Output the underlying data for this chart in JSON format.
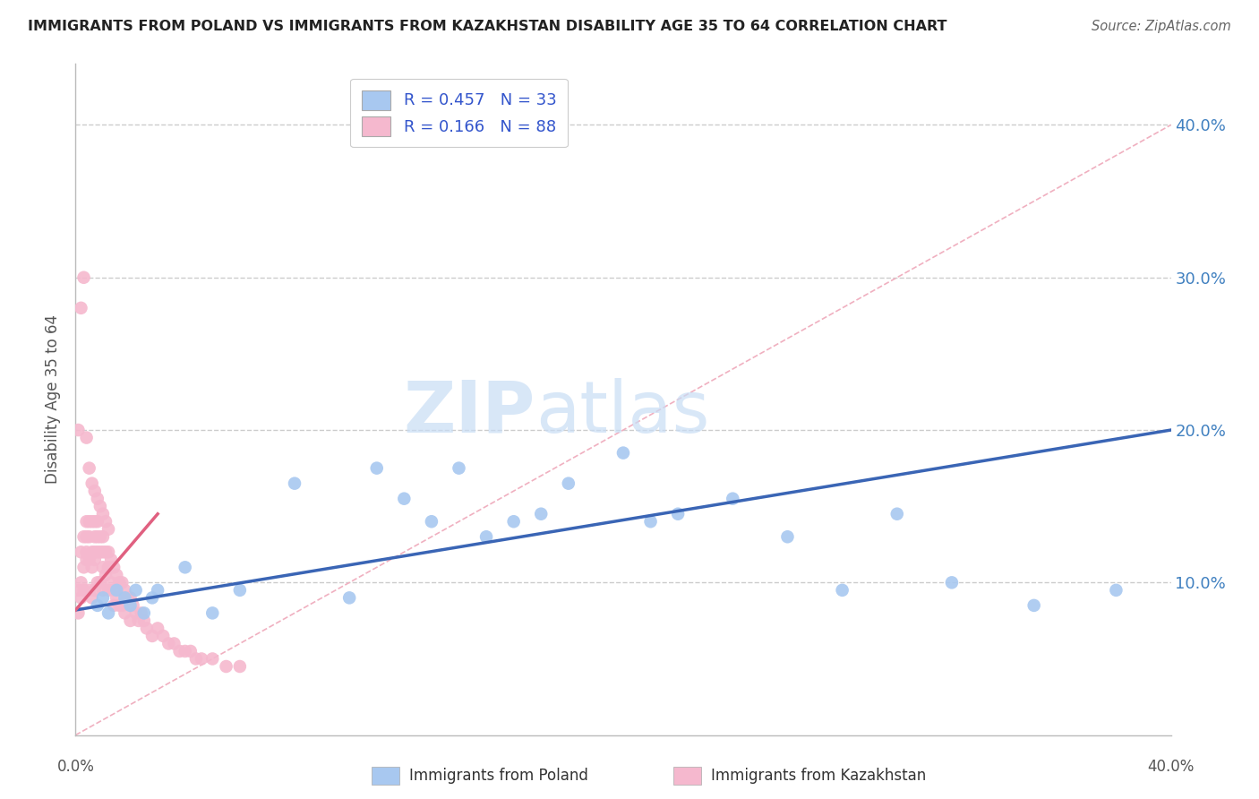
{
  "title": "IMMIGRANTS FROM POLAND VS IMMIGRANTS FROM KAZAKHSTAN DISABILITY AGE 35 TO 64 CORRELATION CHART",
  "source": "Source: ZipAtlas.com",
  "ylabel": "Disability Age 35 to 64",
  "y_tick_vals": [
    0.1,
    0.2,
    0.3,
    0.4
  ],
  "xlim": [
    0.0,
    0.4
  ],
  "ylim": [
    0.0,
    0.44
  ],
  "legend_label_poland": "Immigrants from Poland",
  "legend_label_kazakhstan": "Immigrants from Kazakhstan",
  "color_poland": "#a8c8f0",
  "color_kazakhstan": "#f5b8ce",
  "color_poland_line": "#3a65b5",
  "color_kazakhstan_line": "#e06080",
  "R_poland": 0.457,
  "N_poland": 33,
  "R_kazakhstan": 0.166,
  "N_kazakhstan": 88,
  "poland_x": [
    0.008,
    0.01,
    0.012,
    0.015,
    0.018,
    0.02,
    0.022,
    0.025,
    0.028,
    0.03,
    0.04,
    0.05,
    0.06,
    0.08,
    0.1,
    0.11,
    0.12,
    0.13,
    0.14,
    0.15,
    0.16,
    0.17,
    0.18,
    0.2,
    0.21,
    0.22,
    0.24,
    0.26,
    0.28,
    0.3,
    0.32,
    0.35,
    0.38
  ],
  "poland_y": [
    0.085,
    0.09,
    0.08,
    0.095,
    0.09,
    0.085,
    0.095,
    0.08,
    0.09,
    0.095,
    0.11,
    0.08,
    0.095,
    0.165,
    0.09,
    0.175,
    0.155,
    0.14,
    0.175,
    0.13,
    0.14,
    0.145,
    0.165,
    0.185,
    0.14,
    0.145,
    0.155,
    0.13,
    0.095,
    0.145,
    0.1,
    0.085,
    0.095
  ],
  "kazakhstan_x": [
    0.001,
    0.001,
    0.002,
    0.002,
    0.002,
    0.003,
    0.003,
    0.003,
    0.004,
    0.004,
    0.004,
    0.004,
    0.005,
    0.005,
    0.005,
    0.005,
    0.006,
    0.006,
    0.006,
    0.006,
    0.007,
    0.007,
    0.007,
    0.007,
    0.007,
    0.008,
    0.008,
    0.008,
    0.008,
    0.009,
    0.009,
    0.009,
    0.01,
    0.01,
    0.01,
    0.01,
    0.011,
    0.011,
    0.012,
    0.012,
    0.012,
    0.013,
    0.013,
    0.014,
    0.014,
    0.014,
    0.015,
    0.015,
    0.016,
    0.016,
    0.017,
    0.017,
    0.018,
    0.018,
    0.019,
    0.02,
    0.02,
    0.021,
    0.022,
    0.023,
    0.024,
    0.025,
    0.026,
    0.028,
    0.03,
    0.032,
    0.034,
    0.036,
    0.038,
    0.04,
    0.042,
    0.044,
    0.046,
    0.05,
    0.055,
    0.06,
    0.001,
    0.002,
    0.003,
    0.004,
    0.005,
    0.006,
    0.007,
    0.008,
    0.009,
    0.01,
    0.011,
    0.012
  ],
  "kazakhstan_y": [
    0.095,
    0.08,
    0.09,
    0.12,
    0.1,
    0.11,
    0.13,
    0.095,
    0.115,
    0.13,
    0.14,
    0.12,
    0.13,
    0.14,
    0.115,
    0.095,
    0.12,
    0.14,
    0.11,
    0.09,
    0.13,
    0.12,
    0.14,
    0.115,
    0.095,
    0.13,
    0.14,
    0.12,
    0.1,
    0.13,
    0.12,
    0.1,
    0.13,
    0.12,
    0.11,
    0.095,
    0.12,
    0.105,
    0.12,
    0.11,
    0.095,
    0.115,
    0.1,
    0.11,
    0.095,
    0.085,
    0.105,
    0.09,
    0.1,
    0.085,
    0.1,
    0.085,
    0.095,
    0.08,
    0.09,
    0.09,
    0.075,
    0.085,
    0.08,
    0.075,
    0.08,
    0.075,
    0.07,
    0.065,
    0.07,
    0.065,
    0.06,
    0.06,
    0.055,
    0.055,
    0.055,
    0.05,
    0.05,
    0.05,
    0.045,
    0.045,
    0.2,
    0.28,
    0.3,
    0.195,
    0.175,
    0.165,
    0.16,
    0.155,
    0.15,
    0.145,
    0.14,
    0.135
  ]
}
